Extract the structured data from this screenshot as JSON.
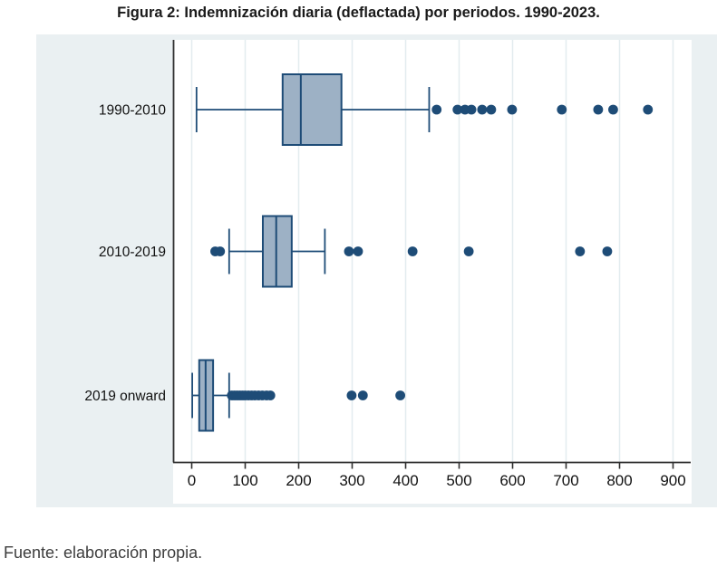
{
  "title": "Figura 2: Indemnización diaria (deflactada) por periodos. 1990-2023.",
  "source_note": "Fuente: elaboración propia.",
  "colors": {
    "graph_background": "#eaf0f2",
    "plot_background": "#ffffff",
    "gridline": "#e3ecef",
    "axis": "#2f2f2f",
    "navy_stroke": "#1e4c77",
    "box_fill": "#9db1c5",
    "outlier_dot": "#1e4c77",
    "title_text": "#1a1a1a",
    "tick_text": "#111111",
    "source_text": "#3d3d3d"
  },
  "chart_data": {
    "type": "boxplot",
    "orientation": "horizontal",
    "title": "Figura 2: Indemnización diaria (deflactada) por periodos. 1990-2023.",
    "xlabel": "",
    "ylabel": "",
    "xlim": [
      0,
      900
    ],
    "x_ticks": [
      0,
      100,
      200,
      300,
      400,
      500,
      600,
      700,
      800,
      900
    ],
    "grid": true,
    "legend": "none",
    "categories": [
      "1990-2010",
      "2010-2019",
      "2019 onward"
    ],
    "series": [
      {
        "category": "1990-2010",
        "whisker_low": 9,
        "q1": 170,
        "median": 204,
        "q3": 280,
        "whisker_high": 444,
        "outliers": [
          458,
          497,
          511,
          523,
          543,
          560,
          599,
          692,
          760,
          788,
          853
        ]
      },
      {
        "category": "2010-2019",
        "whisker_low": 70,
        "q1": 133,
        "median": 158,
        "q3": 187,
        "whisker_high": 249,
        "outliers": [
          44,
          53,
          294,
          311,
          413,
          518,
          726,
          777
        ]
      },
      {
        "category": "2019 onward",
        "whisker_low": 1,
        "q1": 14,
        "median": 26,
        "q3": 40,
        "whisker_high": 70,
        "outliers": [
          75,
          80,
          85,
          90,
          95,
          100,
          106,
          112,
          118,
          125,
          132,
          140,
          147,
          299,
          320,
          390
        ]
      }
    ]
  }
}
